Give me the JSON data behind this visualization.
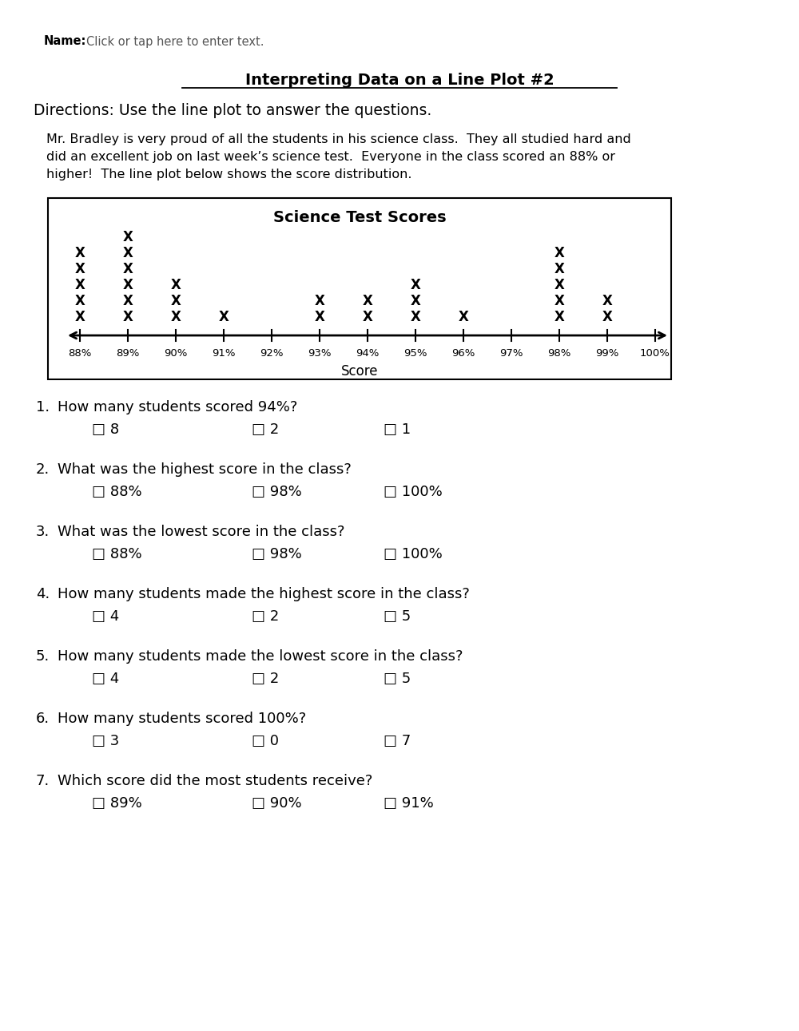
{
  "page_title": "Interpreting Data on a Line Plot #2",
  "name_label": "Name:",
  "name_placeholder": "Click or tap here to enter text.",
  "directions": "Directions: Use the line plot to answer the questions.",
  "paragraph_lines": [
    "Mr. Bradley is very proud of all the students in his science class.  They all studied hard and",
    "did an excellent job on last week’s science test.  Everyone in the class scored an 88% or",
    "higher!  The line plot below shows the score distribution."
  ],
  "plot_title": "Science Test Scores",
  "x_label": "Score",
  "scores": [
    88,
    89,
    90,
    91,
    92,
    93,
    94,
    95,
    96,
    97,
    98,
    99,
    100
  ],
  "counts": [
    5,
    6,
    3,
    1,
    0,
    2,
    2,
    3,
    1,
    0,
    5,
    2,
    0
  ],
  "score_labels": [
    "88%",
    "89%",
    "90%",
    "91%",
    "92%",
    "93%",
    "94%",
    "95%",
    "96%",
    "97%",
    "98%",
    "99%",
    "100%"
  ],
  "questions": [
    {
      "num": "1.",
      "question": "How many students scored 94%?",
      "choices": [
        "□ 8",
        "□ 2",
        "□ 1"
      ]
    },
    {
      "num": "2.",
      "question": "What was the highest score in the class?",
      "choices": [
        "□ 88%",
        "□ 98%",
        "□ 100%"
      ]
    },
    {
      "num": "3.",
      "question": "What was the lowest score in the class?",
      "choices": [
        "□ 88%",
        "□ 98%",
        "□ 100%"
      ]
    },
    {
      "num": "4.",
      "question": "How many students made the highest score in the class?",
      "choices": [
        "□ 4",
        "□ 2",
        "□ 5"
      ]
    },
    {
      "num": "5.",
      "question": "How many students made the lowest score in the class?",
      "choices": [
        "□ 4",
        "□ 2",
        "□ 5"
      ]
    },
    {
      "num": "6.",
      "question": "How many students scored 100%?",
      "choices": [
        "□ 3",
        "□ 0",
        "□ 7"
      ]
    },
    {
      "num": "7.",
      "question": "Which score did the most students receive?",
      "choices": [
        "□ 89%",
        "□ 90%",
        "□ 91%"
      ]
    }
  ],
  "bg_color": "#ffffff",
  "text_color": "#000000",
  "gray_text_color": "#555555",
  "plot_box_color": "#ffffff",
  "plot_border_color": "#000000"
}
